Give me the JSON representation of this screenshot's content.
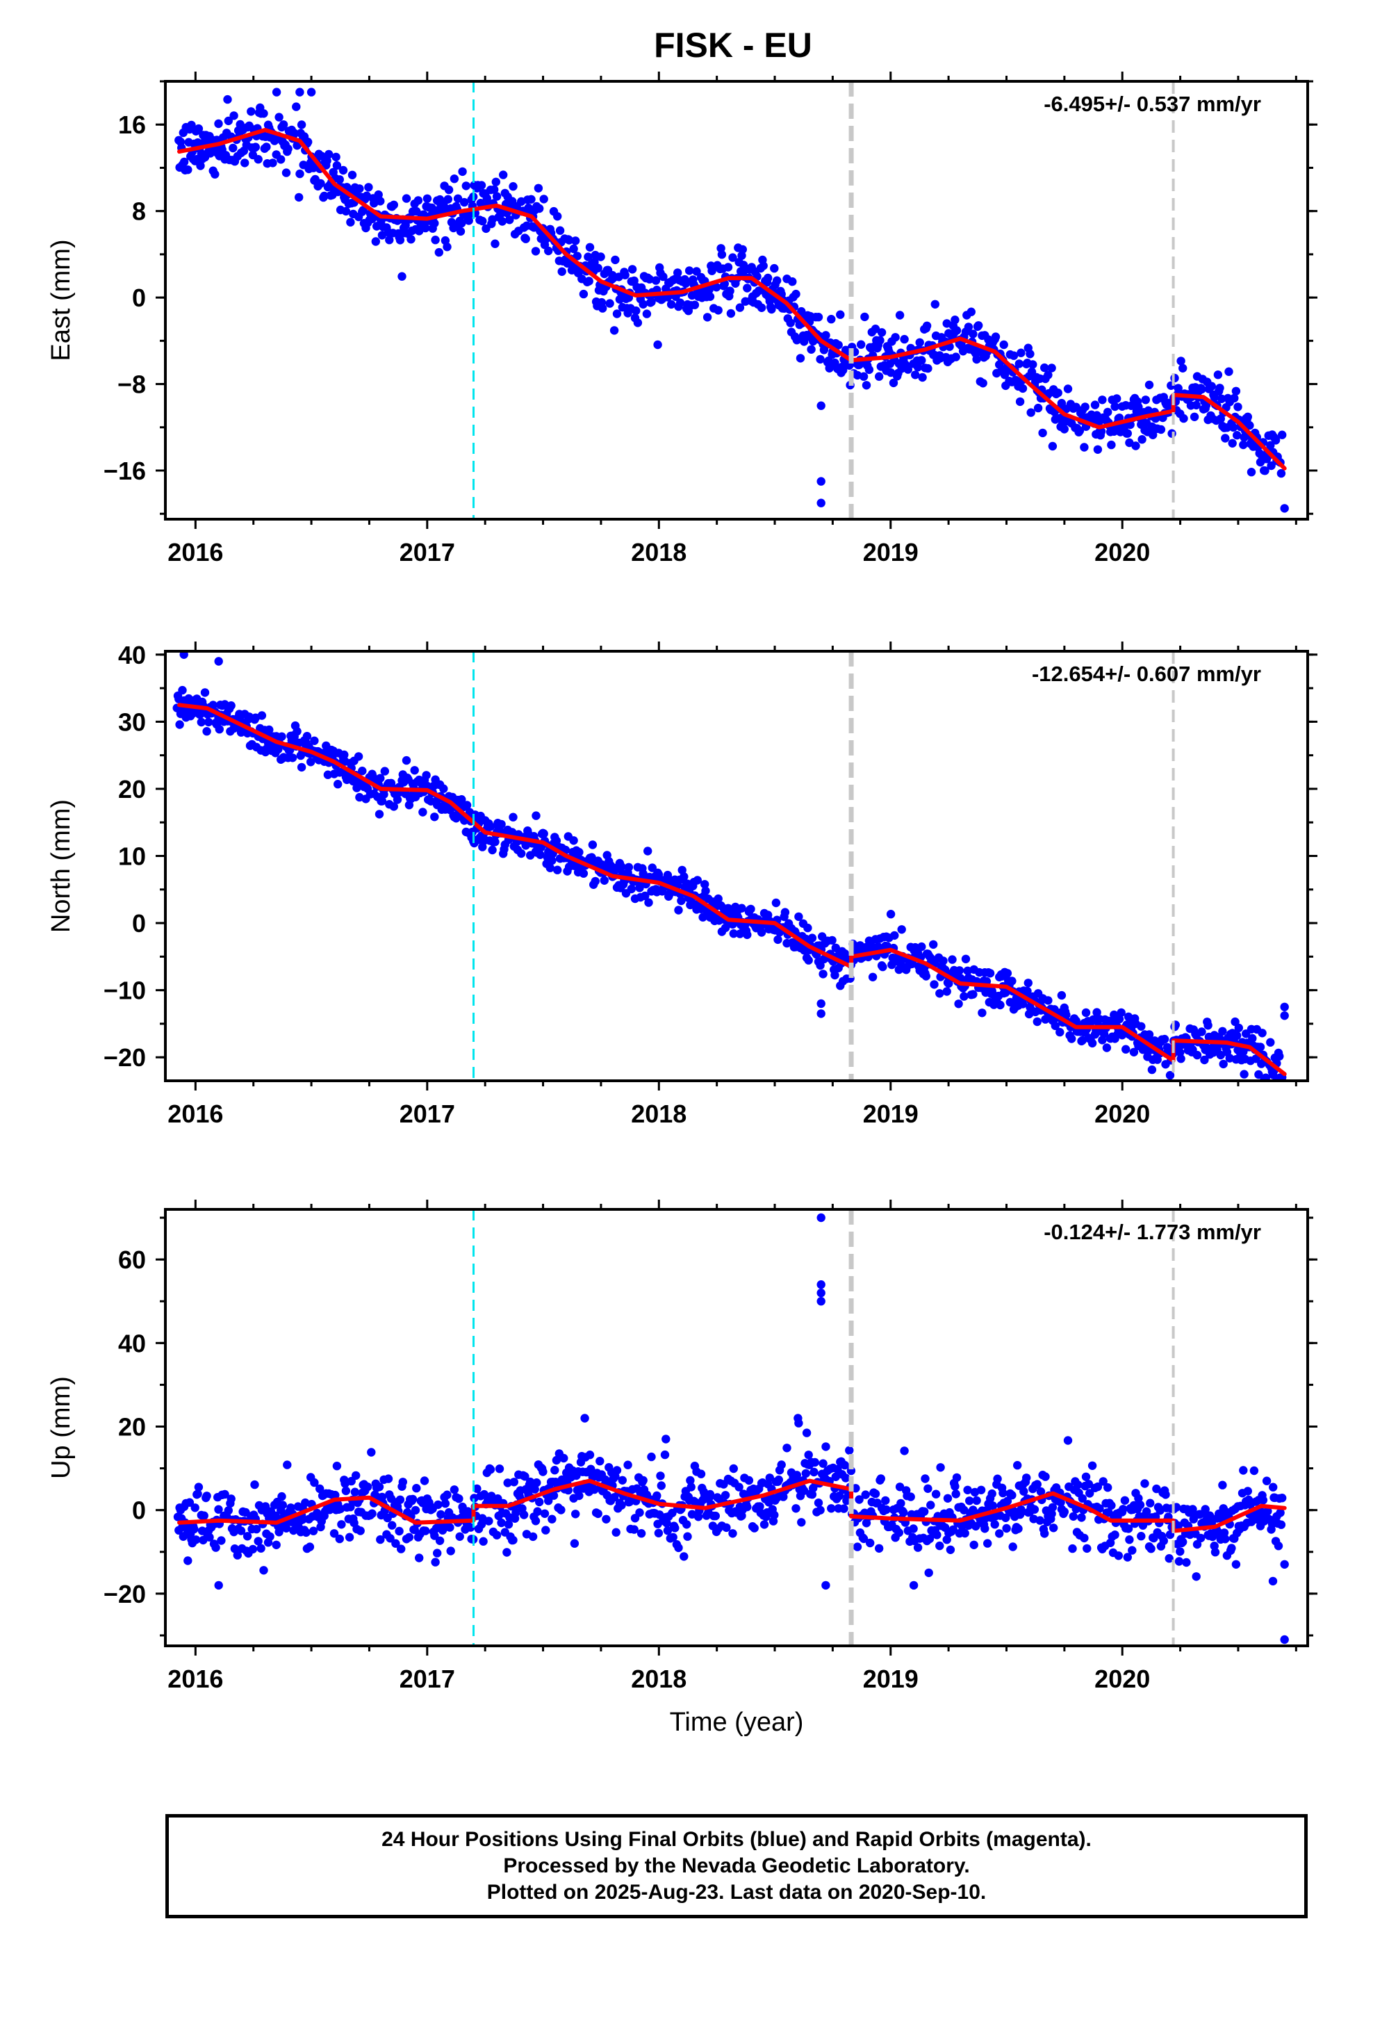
{
  "title": "FISK - EU",
  "colors": {
    "points": "#0000ff",
    "fit": "#ff0000",
    "cyan_line": "#00e5ee",
    "gray_line": "#c8c8c8",
    "axis": "#000000"
  },
  "chart_data": [
    {
      "type": "scatter",
      "component": "east",
      "ylabel": "East (mm)",
      "xlabel": "",
      "rate_label": "-6.495+/- 0.537 mm/yr",
      "xlim": [
        2015.87,
        2020.8
      ],
      "ylim": [
        -20.5,
        20
      ],
      "xticks": [
        2016,
        2017,
        2018,
        2019,
        2020
      ],
      "yticks": [
        -16,
        -8,
        0,
        8,
        16
      ],
      "fit_knots": [
        [
          2015.93,
          13.5
        ],
        [
          2016.1,
          14.2
        ],
        [
          2016.3,
          15.5
        ],
        [
          2016.45,
          14.5
        ],
        [
          2016.6,
          10.5
        ],
        [
          2016.8,
          7.5
        ],
        [
          2017.0,
          7.3
        ],
        [
          2017.15,
          8.0
        ],
        [
          2017.3,
          8.5
        ],
        [
          2017.45,
          7.5
        ],
        [
          2017.6,
          4.0
        ],
        [
          2017.75,
          1.5
        ],
        [
          2017.9,
          0.2
        ],
        [
          2018.1,
          0.5
        ],
        [
          2018.3,
          1.8
        ],
        [
          2018.4,
          1.8
        ],
        [
          2018.55,
          -0.5
        ],
        [
          2018.7,
          -4.0
        ],
        [
          2018.83,
          -5.8
        ],
        [
          2019.0,
          -5.5
        ],
        [
          2019.15,
          -4.8
        ],
        [
          2019.3,
          -3.8
        ],
        [
          2019.45,
          -5.0
        ],
        [
          2019.6,
          -8.0
        ],
        [
          2019.75,
          -10.8
        ],
        [
          2019.9,
          -12.0
        ],
        [
          2020.1,
          -11.0
        ],
        [
          2020.22,
          -10.5
        ],
        [
          2020.22,
          -9.0
        ],
        [
          2020.35,
          -9.2
        ],
        [
          2020.5,
          -11.5
        ],
        [
          2020.7,
          -15.8
        ]
      ],
      "noise": 1.3,
      "outliers": [
        [
          2018.7,
          -17
        ],
        [
          2018.7,
          -19
        ],
        [
          2018.7,
          -10
        ],
        [
          2020.7,
          -19.5
        ],
        [
          2016.35,
          19
        ],
        [
          2016.45,
          19
        ],
        [
          2016.5,
          19
        ],
        [
          2018.75,
          -5
        ]
      ]
    },
    {
      "type": "scatter",
      "component": "north",
      "ylabel": "North (mm)",
      "xlabel": "",
      "rate_label": "-12.654+/- 0.607 mm/yr",
      "xlim": [
        2015.87,
        2020.8
      ],
      "ylim": [
        -23.5,
        40.5
      ],
      "xticks": [
        2016,
        2017,
        2018,
        2019,
        2020
      ],
      "yticks": [
        -20,
        -10,
        0,
        10,
        20,
        30,
        40
      ],
      "fit_knots": [
        [
          2015.93,
          32.5
        ],
        [
          2016.05,
          32.0
        ],
        [
          2016.2,
          29.5
        ],
        [
          2016.35,
          27.0
        ],
        [
          2016.5,
          25.5
        ],
        [
          2016.6,
          24.0
        ],
        [
          2016.8,
          20.0
        ],
        [
          2017.0,
          19.8
        ],
        [
          2017.1,
          18.0
        ],
        [
          2017.25,
          13.5
        ],
        [
          2017.5,
          12.0
        ],
        [
          2017.6,
          10.0
        ],
        [
          2017.8,
          7.0
        ],
        [
          2018.0,
          6.0
        ],
        [
          2018.15,
          4.0
        ],
        [
          2018.3,
          0.5
        ],
        [
          2018.5,
          0.0
        ],
        [
          2018.65,
          -3.5
        ],
        [
          2018.83,
          -6.5
        ],
        [
          2018.83,
          -5.0
        ],
        [
          2019.0,
          -4.0
        ],
        [
          2019.15,
          -6.0
        ],
        [
          2019.3,
          -9.0
        ],
        [
          2019.5,
          -9.5
        ],
        [
          2019.65,
          -12.5
        ],
        [
          2019.8,
          -15.5
        ],
        [
          2020.0,
          -15.5
        ],
        [
          2020.22,
          -20.5
        ],
        [
          2020.22,
          -17.5
        ],
        [
          2020.45,
          -17.8
        ],
        [
          2020.55,
          -18.5
        ],
        [
          2020.7,
          -22.5
        ]
      ],
      "noise": 1.4,
      "outliers": [
        [
          2018.7,
          -12
        ],
        [
          2018.7,
          -13.5
        ],
        [
          2020.7,
          -12.5
        ],
        [
          2020.7,
          -13.8
        ],
        [
          2017.47,
          16
        ],
        [
          2016.1,
          39
        ],
        [
          2015.95,
          40
        ]
      ]
    },
    {
      "type": "scatter",
      "component": "up",
      "ylabel": "Up (mm)",
      "xlabel": "Time (year)",
      "rate_label": "-0.124+/- 1.773 mm/yr",
      "xlim": [
        2015.87,
        2020.8
      ],
      "ylim": [
        -32.5,
        72
      ],
      "xticks": [
        2016,
        2017,
        2018,
        2019,
        2020
      ],
      "yticks": [
        -20,
        0,
        20,
        40,
        60
      ],
      "fit_knots": [
        [
          2015.93,
          -3.0
        ],
        [
          2016.1,
          -2.5
        ],
        [
          2016.35,
          -3.0
        ],
        [
          2016.6,
          2.5
        ],
        [
          2016.75,
          3.0
        ],
        [
          2016.95,
          -3.0
        ],
        [
          2017.2,
          -2.5
        ],
        [
          2017.2,
          1.0
        ],
        [
          2017.35,
          1.0
        ],
        [
          2017.55,
          5.0
        ],
        [
          2017.7,
          7.0
        ],
        [
          2017.85,
          4.0
        ],
        [
          2018.0,
          1.5
        ],
        [
          2018.2,
          0.5
        ],
        [
          2018.45,
          3.5
        ],
        [
          2018.65,
          7.0
        ],
        [
          2018.83,
          5.0
        ],
        [
          2018.83,
          -1.5
        ],
        [
          2019.0,
          -2.0
        ],
        [
          2019.3,
          -2.5
        ],
        [
          2019.5,
          0.5
        ],
        [
          2019.7,
          4.0
        ],
        [
          2019.85,
          0.5
        ],
        [
          2019.95,
          -2.5
        ],
        [
          2020.22,
          -2.5
        ],
        [
          2020.22,
          -5.0
        ],
        [
          2020.4,
          -4.0
        ],
        [
          2020.6,
          1.0
        ],
        [
          2020.7,
          0.5
        ]
      ],
      "noise": 4.5,
      "outliers": [
        [
          2018.7,
          70
        ],
        [
          2018.7,
          54
        ],
        [
          2018.7,
          52
        ],
        [
          2018.7,
          50
        ],
        [
          2018.6,
          22
        ],
        [
          2017.68,
          22
        ],
        [
          2018.03,
          17
        ],
        [
          2018.72,
          -18
        ],
        [
          2019.1,
          -18
        ],
        [
          2016.1,
          -18
        ],
        [
          2020.7,
          -31
        ],
        [
          2020.7,
          -13
        ],
        [
          2020.65,
          -17
        ]
      ]
    }
  ],
  "vertical_lines": [
    {
      "x": 2017.2,
      "style": "cyan-dashed"
    },
    {
      "x": 2018.83,
      "style": "gray-dashed-thick"
    },
    {
      "x": 2020.22,
      "style": "gray-dashed"
    }
  ],
  "footer": {
    "line1": "24 Hour Positions Using Final Orbits (blue) and Rapid Orbits (magenta).",
    "line2": "Processed by the Nevada Geodetic Laboratory.",
    "line3": "Plotted on 2025-Aug-23. Last data on 2020-Sep-10."
  }
}
